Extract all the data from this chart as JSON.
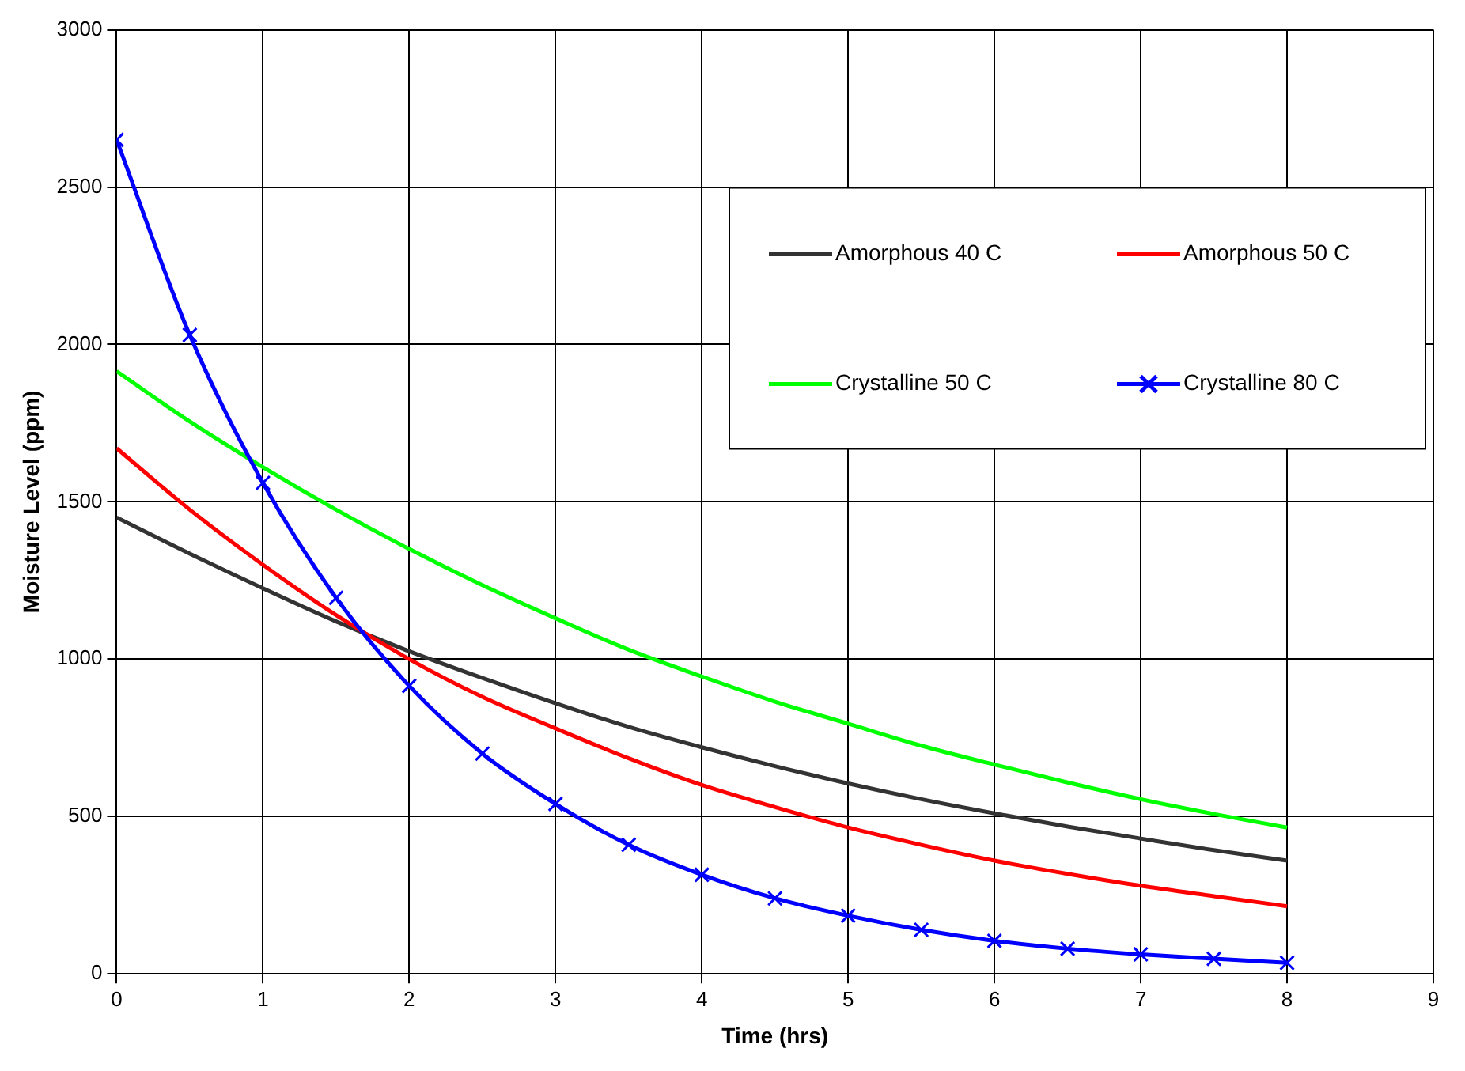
{
  "chart_data": {
    "type": "line",
    "xlabel": "Time (hrs)",
    "ylabel": "Moisture Level (ppm)",
    "x": [
      0,
      0.5,
      1,
      1.5,
      2,
      2.5,
      3,
      3.5,
      4,
      4.5,
      5,
      5.5,
      6,
      6.5,
      7,
      7.5,
      8
    ],
    "series": [
      {
        "name": "Amorphous 40 C",
        "color": "#333333",
        "values": [
          1450,
          1335,
          1225,
          1120,
          1025,
          940,
          860,
          785,
          720,
          660,
          605,
          555,
          510,
          468,
          430,
          393,
          360
        ]
      },
      {
        "name": "Amorphous 50 C",
        "color": "#ff0000",
        "values": [
          1670,
          1475,
          1300,
          1140,
          1000,
          880,
          780,
          685,
          600,
          530,
          465,
          410,
          360,
          318,
          280,
          247,
          215
        ]
      },
      {
        "name": "Crystalline 50 C",
        "color": "#00ff00",
        "values": [
          1915,
          1755,
          1610,
          1475,
          1350,
          1235,
          1130,
          1030,
          945,
          865,
          795,
          725,
          665,
          608,
          555,
          508,
          465
        ]
      },
      {
        "name": "Crystalline 80 C",
        "color": "#0000ff",
        "marker": "cross",
        "values": [
          2650,
          2030,
          1560,
          1195,
          915,
          700,
          540,
          410,
          315,
          240,
          185,
          140,
          105,
          80,
          62,
          48,
          35
        ]
      }
    ],
    "xlim": [
      0,
      9
    ],
    "xticks": [
      0,
      1,
      2,
      3,
      4,
      5,
      6,
      7,
      8,
      9
    ],
    "ylim": [
      0,
      3000
    ],
    "yticks": [
      0,
      500,
      1000,
      1500,
      2000,
      2500,
      3000
    ],
    "grid": true,
    "legend": "top right",
    "marker": "none",
    "line_style": "solid"
  }
}
